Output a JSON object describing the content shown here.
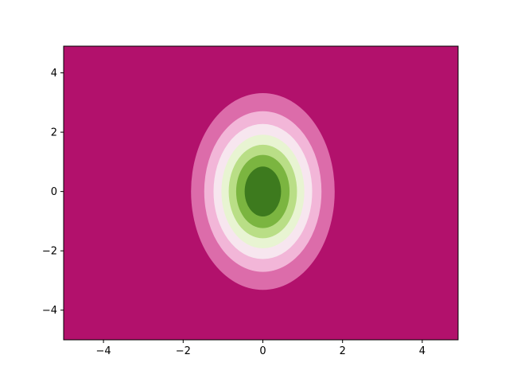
{
  "chart_data": {
    "type": "contourf",
    "title": "",
    "xlabel": "",
    "ylabel": "",
    "xlim": [
      -5,
      4.9
    ],
    "ylim": [
      -5,
      4.9
    ],
    "x_ticks": [
      -4,
      -2,
      0,
      2,
      4
    ],
    "y_ticks": [
      -4,
      -2,
      0,
      2,
      4
    ],
    "x_tick_labels": [
      "−4",
      "−2",
      "0",
      "2",
      "4"
    ],
    "y_tick_labels": [
      "−4",
      "−2",
      "0",
      "2",
      "4"
    ],
    "colormap": "PiYG",
    "grid": false,
    "legend": "none",
    "surface": {
      "function": "z = exp(-(x/sx)^2 - (y/sy)^2)",
      "center": [
        0,
        0
      ],
      "sx": 1.25,
      "sy": 2.3
    },
    "contour_bands": [
      {
        "z_from": 0.875,
        "z_to": 1.0,
        "color": "#3d7a1e"
      },
      {
        "z_from": 0.75,
        "z_to": 0.875,
        "color": "#7bb540"
      },
      {
        "z_from": 0.625,
        "z_to": 0.75,
        "color": "#b9de86"
      },
      {
        "z_from": 0.5,
        "z_to": 0.625,
        "color": "#e8f4d2"
      },
      {
        "z_from": 0.375,
        "z_to": 0.5,
        "color": "#f7e6ef"
      },
      {
        "z_from": 0.25,
        "z_to": 0.375,
        "color": "#f2b6d8"
      },
      {
        "z_from": 0.125,
        "z_to": 0.25,
        "color": "#dc6caa"
      },
      {
        "z_from": 0.0,
        "z_to": 0.125,
        "color": "#b2116c"
      }
    ]
  }
}
